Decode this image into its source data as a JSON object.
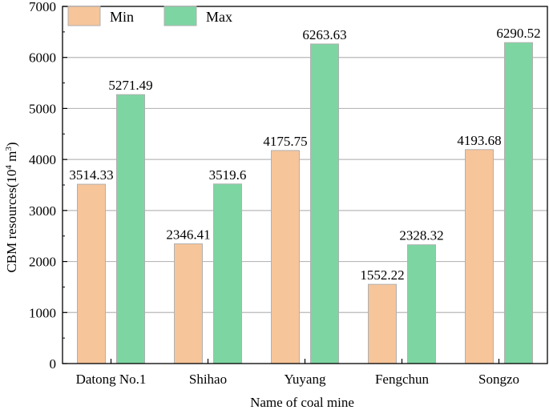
{
  "chart_data": {
    "type": "bar",
    "categories": [
      "Datong No.1",
      "Shihao",
      "Yuyang",
      "Fengchun",
      "Songzo"
    ],
    "series": [
      {
        "name": "Min",
        "values": [
          3514.33,
          2346.41,
          4175.75,
          1552.22,
          4193.68
        ],
        "labels": [
          "3514.33",
          "2346.41",
          "4175.75",
          "1552.22",
          "4193.68"
        ],
        "color": "#f7c59a"
      },
      {
        "name": "Max",
        "values": [
          5271.49,
          3519.6,
          6263.63,
          2328.32,
          6290.52
        ],
        "labels": [
          "5271.49",
          "3519.6",
          "6263.63",
          "2328.32",
          "6290.52"
        ],
        "color": "#7dd6a2"
      }
    ],
    "xlabel": "Name of coal mine",
    "ylabel_prefix": "CBM resources(10",
    "ylabel_superscript_1": "4",
    "ylabel_middle": " m",
    "ylabel_superscript_2": "3",
    "ylabel_suffix": ")",
    "ylim": [
      0,
      7000
    ],
    "yticks": [
      "0",
      "1000",
      "2000",
      "3000",
      "4000",
      "5000",
      "6000",
      "7000"
    ],
    "grid": "horizontal",
    "legend_position": "top-left",
    "bar_stroke": "#b0b0b0",
    "grid_color": "#b8b8b8"
  }
}
